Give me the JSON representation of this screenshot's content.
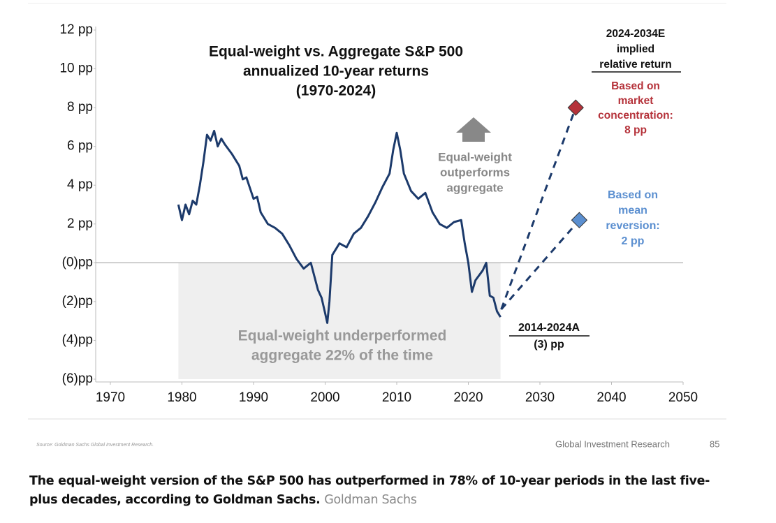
{
  "chart_data": {
    "type": "line",
    "title": [
      "Equal-weight vs. Aggregate S&P 500",
      "annualized 10-year returns",
      "(1970-2024)"
    ],
    "x": [
      1979.5,
      1980,
      1980.5,
      1981,
      1981.5,
      1982,
      1982.5,
      1983,
      1983.5,
      1984,
      1984.5,
      1985,
      1985.5,
      1986,
      1987,
      1988,
      1988.5,
      1989,
      1990,
      1990.5,
      1991,
      1992,
      1993,
      1994,
      1995,
      1996,
      1997,
      1998,
      1999,
      1999.5,
      2000,
      2000.3,
      2000.6,
      2001,
      2002,
      2003,
      2004,
      2005,
      2006,
      2007,
      2008,
      2009,
      2009.5,
      2010,
      2010.5,
      2011,
      2012,
      2013,
      2014,
      2015,
      2016,
      2017,
      2018,
      2019,
      2019.5,
      2020,
      2020.5,
      2021,
      2022,
      2022.5,
      2023,
      2023.5,
      2024,
      2024.5
    ],
    "series": [
      {
        "name": "Equal-weight vs. aggregate",
        "color": "#1c3a6b",
        "dashed": false,
        "values": [
          3.0,
          2.2,
          3.0,
          2.5,
          3.2,
          3.0,
          4.0,
          5.2,
          6.6,
          6.3,
          6.8,
          6.0,
          6.4,
          6.1,
          5.6,
          5.0,
          4.3,
          4.4,
          3.3,
          3.4,
          2.6,
          2.0,
          1.8,
          1.5,
          0.9,
          0.2,
          -0.3,
          0.0,
          -1.4,
          -1.8,
          -2.6,
          -3.1,
          -2.0,
          0.4,
          1.0,
          0.8,
          1.5,
          1.8,
          2.4,
          3.1,
          3.9,
          4.6,
          5.8,
          6.7,
          5.8,
          4.6,
          3.7,
          3.3,
          3.6,
          2.6,
          2.0,
          1.8,
          2.1,
          2.2,
          1.0,
          0.0,
          -1.5,
          -0.9,
          -0.4,
          0.0,
          -1.7,
          -1.8,
          -2.5,
          -2.8
        ]
      },
      {
        "name": "Based on market concentration",
        "color": "#b5323a",
        "dashed": true,
        "x": [
          2024.6,
          2035
        ],
        "values": [
          -2.4,
          8
        ]
      },
      {
        "name": "Based on mean reversion",
        "color": "#5b8fd0",
        "dashed": true,
        "x": [
          2024.6,
          2035.5
        ],
        "values": [
          -2.4,
          2.2
        ]
      }
    ],
    "xlim": [
      1970,
      2050
    ],
    "xticks": [
      1970,
      1980,
      1990,
      2000,
      2010,
      2020,
      2030,
      2040,
      2050
    ],
    "ylim": [
      -6,
      12
    ],
    "yticks": [
      {
        "value": 12,
        "label": "12 pp"
      },
      {
        "value": 10,
        "label": "10 pp"
      },
      {
        "value": 8,
        "label": "8 pp"
      },
      {
        "value": 6,
        "label": "6 pp"
      },
      {
        "value": 4,
        "label": "4 pp"
      },
      {
        "value": 2,
        "label": "2 pp"
      },
      {
        "value": 0,
        "label": "(0)pp"
      },
      {
        "value": -2,
        "label": "(2)pp"
      },
      {
        "value": -4,
        "label": "(4)pp"
      },
      {
        "value": -6,
        "label": "(6)pp"
      }
    ],
    "annotations": [
      {
        "lines": [
          "Equal-weight",
          "outperforms",
          "aggregate"
        ]
      },
      {
        "lines": [
          "Equal-weight underperformed",
          "aggregate 22% of the time"
        ]
      },
      {
        "lines": [
          "2024-2034E",
          "implied",
          "relative return"
        ]
      },
      {
        "lines": [
          "Based on",
          "market",
          "concentration:",
          "8 pp"
        ]
      },
      {
        "lines": [
          "Based on",
          "mean",
          "reversion:",
          "2 pp"
        ]
      },
      {
        "lines": [
          "2014-2024A",
          "(3) pp"
        ]
      }
    ]
  },
  "footer": {
    "source": "Source: Goldman Sachs Global Investment Research.",
    "brand": "Global Investment Research",
    "page": "85"
  },
  "caption": {
    "text": "The equal-weight version of the S&P 500 has outperformed in 78% of 10-year periods in the last five-plus decades, according to Goldman Sachs.",
    "credit": "Goldman Sachs"
  }
}
